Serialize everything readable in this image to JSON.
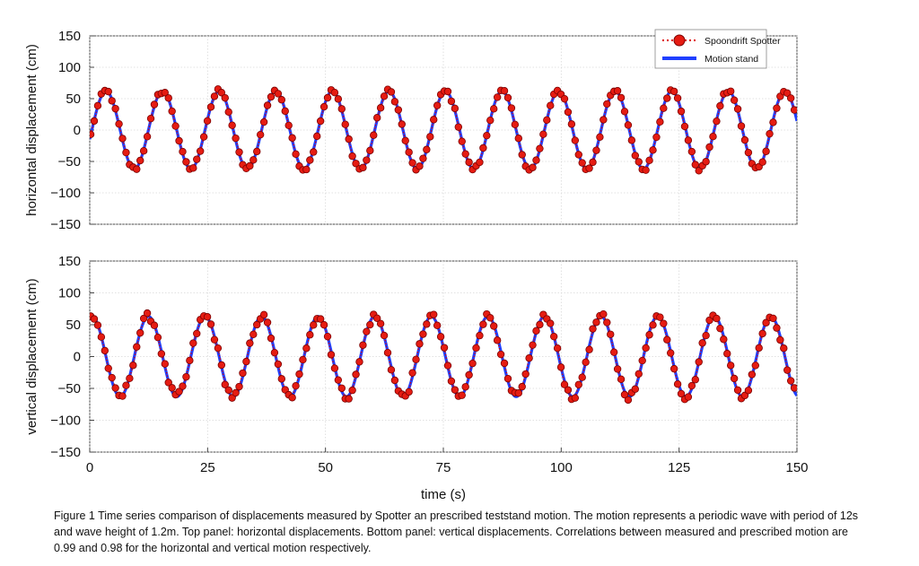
{
  "caption": "Figure 1 Time series comparison of displacements measured by Spotter an prescribed teststand motion. The motion represents a periodic wave with period of 12s and wave height of 1.2m. Top panel: horizontal displacements. Bottom panel: vertical displacements. Correlations between measured and prescribed motion are 0.99 and 0.98 for the horizontal and vertical motion respectively.",
  "chart_data": [
    {
      "type": "line",
      "panel": "top",
      "ylabel": "horizontal displacement (cm)",
      "xlim": [
        0,
        150
      ],
      "ylim": [
        -150,
        150
      ],
      "yticks": [
        150,
        100,
        50,
        0,
        -50,
        -100,
        -150
      ],
      "grid": true,
      "legend_placement": "top-right",
      "series": [
        {
          "name": "Spoondrift Spotter",
          "style": "dotted-markers",
          "color": "#e00000",
          "period_s": 12,
          "amplitude_cm": 62,
          "phase_shift_s": 0.45,
          "sample_interval_s": 0.75,
          "noise_cm": 4
        },
        {
          "name": "Motion stand",
          "style": "solid",
          "color": "#1f3fff",
          "period_s": 12,
          "amplitude_cm": 62,
          "phase_shift_s": 0.45
        }
      ]
    },
    {
      "type": "line",
      "panel": "bottom",
      "ylabel": "vertical displacement (cm)",
      "xlabel": "time (s)",
      "xlim": [
        0,
        150
      ],
      "ylim": [
        -150,
        150
      ],
      "xticks": [
        0,
        25,
        50,
        75,
        100,
        125,
        150
      ],
      "yticks": [
        150,
        100,
        50,
        0,
        -50,
        -100,
        -150
      ],
      "grid": true,
      "series": [
        {
          "name": "Spoondrift Spotter",
          "style": "dotted-markers",
          "color": "#e00000",
          "period_s": 12,
          "amplitude_cm": 63,
          "phase_shift_s": -2.55,
          "sample_interval_s": 0.75,
          "noise_cm": 6
        },
        {
          "name": "Motion stand",
          "style": "solid",
          "color": "#1f3fff",
          "period_s": 12,
          "amplitude_cm": 63,
          "phase_shift_s": -2.55
        }
      ]
    }
  ]
}
